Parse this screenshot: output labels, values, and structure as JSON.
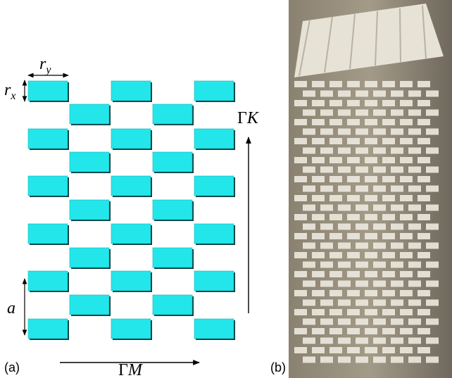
{
  "panel_a": {
    "tag": "(a)",
    "ry": {
      "base": "r",
      "sub": "y"
    },
    "rx": {
      "base": "r",
      "sub": "x"
    },
    "gamma_k": {
      "gamma": "Γ",
      "point": "K"
    },
    "lattice": "a",
    "gamma_m": {
      "gamma": "Γ",
      "point": "M"
    }
  },
  "panel_b": {
    "tag": "(b)"
  }
}
